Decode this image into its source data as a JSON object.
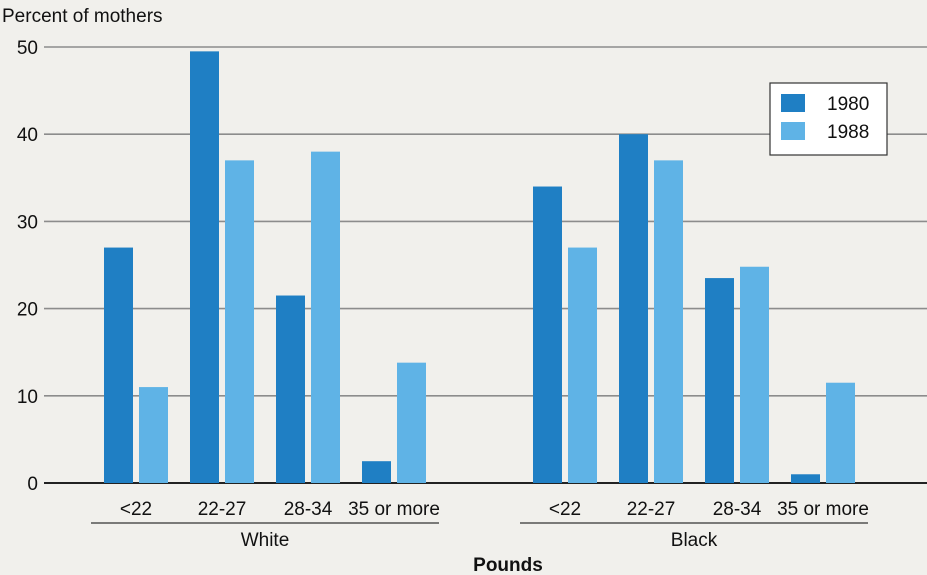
{
  "chart_data": {
    "type": "bar",
    "ylabel": "Percent of mothers",
    "xlabel": "Pounds",
    "ylim": [
      0,
      50
    ],
    "yticks": [
      0,
      10,
      20,
      30,
      40,
      50
    ],
    "grid": "horizontal",
    "legend_position": "top-right",
    "groups": [
      {
        "name": "White",
        "categories": [
          "<22",
          "22-27",
          "28-34",
          "35 or more"
        ]
      },
      {
        "name": "Black",
        "categories": [
          "<22",
          "22-27",
          "28-34",
          "35 or more"
        ]
      }
    ],
    "series": [
      {
        "name": "1980",
        "color": "#1f7fc4",
        "values": [
          [
            27,
            49.5,
            21.5,
            2.5
          ],
          [
            34,
            40,
            23.5,
            1
          ]
        ]
      },
      {
        "name": "1988",
        "color": "#5fb3e6",
        "values": [
          [
            11,
            37,
            38,
            13.8
          ],
          [
            27,
            37,
            24.8,
            11.5
          ]
        ]
      }
    ]
  }
}
